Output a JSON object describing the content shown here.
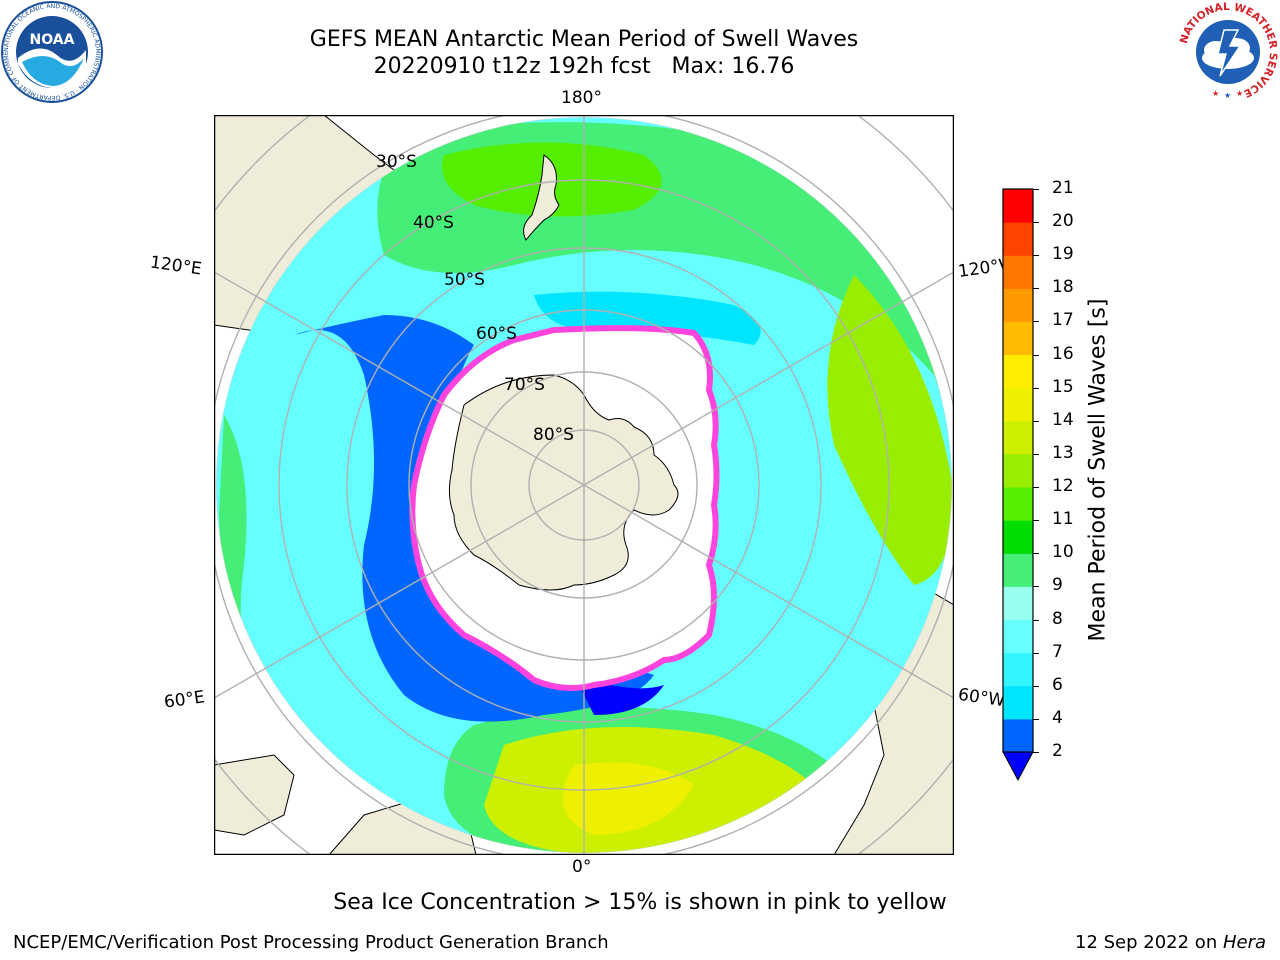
{
  "header": {
    "title_line1": "GEFS MEAN Antarctic Mean Period of Swell Waves",
    "title_line2": "20220910 t12z 192h fcst   Max: 16.76"
  },
  "logos": {
    "left": {
      "name": "NOAA",
      "text": "NOAA",
      "ring_text": "NATIONAL OCEANIC AND ATMOSPHERIC ADMINISTRATION · U.S. DEPARTMENT OF COMMERCE",
      "color": "#1a4f9c"
    },
    "right": {
      "name": "National Weather Service",
      "ring_text": "NATIONAL WEATHER SERVICE",
      "color": "#d62027"
    }
  },
  "map": {
    "projection": "south-polar-stereographic",
    "longitude_labels": [
      "180°",
      "120°E",
      "120°W",
      "60°E",
      "60°W",
      "0°"
    ],
    "latitude_labels": [
      "30°S",
      "40°S",
      "50°S",
      "60°S",
      "70°S",
      "80°S"
    ],
    "colors": {
      "land": "#efedda",
      "ice_free_ocean": "#ffffff",
      "sea_ice": "#ff44dd",
      "grid": "#b0b0b0"
    }
  },
  "colorbar": {
    "label": "Mean Period of Swell Waves [s]",
    "ticks": [
      "21",
      "20",
      "19",
      "18",
      "17",
      "16",
      "15",
      "14",
      "13",
      "12",
      "11",
      "10",
      "9",
      "8",
      "7",
      "6",
      "4",
      "2"
    ],
    "bins": [
      {
        "from": 2,
        "to": 4,
        "color": "#0066ff"
      },
      {
        "from": 4,
        "to": 6,
        "color": "#00e5ff"
      },
      {
        "from": 6,
        "to": 7,
        "color": "#33f5ff"
      },
      {
        "from": 7,
        "to": 8,
        "color": "#66ffff"
      },
      {
        "from": 8,
        "to": 9,
        "color": "#99ffee"
      },
      {
        "from": 9,
        "to": 10,
        "color": "#44ee77"
      },
      {
        "from": 10,
        "to": 11,
        "color": "#00dd00"
      },
      {
        "from": 11,
        "to": 12,
        "color": "#55ee00"
      },
      {
        "from": 12,
        "to": 13,
        "color": "#99ee00"
      },
      {
        "from": 13,
        "to": 14,
        "color": "#ccf000"
      },
      {
        "from": 14,
        "to": 15,
        "color": "#eef000"
      },
      {
        "from": 15,
        "to": 16,
        "color": "#ffee00"
      },
      {
        "from": 16,
        "to": 17,
        "color": "#ffbb00"
      },
      {
        "from": 17,
        "to": 18,
        "color": "#ff9900"
      },
      {
        "from": 18,
        "to": 19,
        "color": "#ff7700"
      },
      {
        "from": 19,
        "to": 20,
        "color": "#ff4400"
      },
      {
        "from": 20,
        "to": 21,
        "color": "#ff0000"
      }
    ],
    "extend_below_color": "#0000ff"
  },
  "footer": {
    "subtitle": "Sea Ice Concentration > 15% is shown in pink to yellow",
    "left": "NCEP/EMC/Verification Post Processing Product Generation Branch",
    "date": "12 Sep 2022 on ",
    "system": "Hera"
  }
}
